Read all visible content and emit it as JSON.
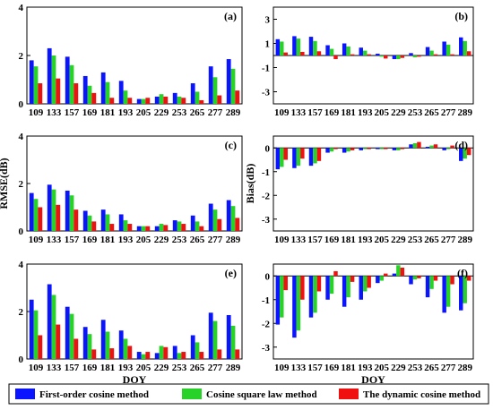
{
  "colors": {
    "first_order": "#0a14ff",
    "cosine_square": "#28d228",
    "dynamic": "#f01010"
  },
  "legend": {
    "items": [
      {
        "label": "First-order cosine method",
        "color": "#0a14ff"
      },
      {
        "label": "Cosine square law method",
        "color": "#28d228"
      },
      {
        "label": "The dynamic cosine method",
        "color": "#f01010"
      }
    ]
  },
  "chart_data": [
    {
      "type": "bar",
      "panel_label": "(a)",
      "categories": [
        "109",
        "133",
        "157",
        "169",
        "181",
        "193",
        "205",
        "229",
        "253",
        "265",
        "277",
        "289"
      ],
      "xlabel": "",
      "ylabel": "",
      "ylim": [
        0,
        4
      ],
      "yticks": [
        0,
        2,
        4
      ],
      "legend": "bottom",
      "series": [
        {
          "name": "First-order cosine method",
          "values": [
            1.8,
            2.3,
            1.95,
            1.15,
            1.3,
            0.95,
            0.2,
            0.3,
            0.45,
            0.85,
            1.55,
            1.85
          ]
        },
        {
          "name": "Cosine square law method",
          "values": [
            1.55,
            2.0,
            1.6,
            0.75,
            0.9,
            0.55,
            0.2,
            0.4,
            0.3,
            0.5,
            1.1,
            1.45
          ]
        },
        {
          "name": "The dynamic cosine method",
          "values": [
            0.85,
            1.05,
            0.85,
            0.45,
            0.25,
            0.25,
            0.25,
            0.3,
            0.25,
            0.15,
            0.35,
            0.55
          ]
        }
      ]
    },
    {
      "type": "bar",
      "panel_label": "(b)",
      "categories": [
        "109",
        "133",
        "157",
        "169",
        "181",
        "193",
        "205",
        "229",
        "253",
        "265",
        "277",
        "289"
      ],
      "xlabel": "",
      "ylabel": "",
      "ylim": [
        -4,
        4
      ],
      "yticks": [
        -3,
        -1,
        1,
        3
      ],
      "legend": "bottom",
      "series": [
        {
          "name": "First-order cosine method",
          "values": [
            1.35,
            1.6,
            1.55,
            0.85,
            1.0,
            0.65,
            0.15,
            -0.3,
            0.2,
            0.7,
            1.15,
            1.5
          ]
        },
        {
          "name": "Cosine square law method",
          "values": [
            1.15,
            1.4,
            1.2,
            0.55,
            0.75,
            0.4,
            -0.1,
            -0.3,
            -0.15,
            0.4,
            0.9,
            1.2
          ]
        },
        {
          "name": "The dynamic cosine method",
          "values": [
            0.25,
            0.3,
            0.35,
            -0.3,
            0.1,
            0.1,
            -0.25,
            -0.2,
            -0.1,
            0.1,
            0.1,
            0.35
          ]
        }
      ]
    },
    {
      "type": "bar",
      "panel_label": "(c)",
      "categories": [
        "109",
        "133",
        "157",
        "169",
        "181",
        "193",
        "205",
        "229",
        "253",
        "265",
        "277",
        "289"
      ],
      "xlabel": "",
      "ylabel": "RMSE(dB)",
      "ylim": [
        0,
        4
      ],
      "yticks": [
        0,
        2,
        4
      ],
      "legend": "bottom",
      "series": [
        {
          "name": "First-order cosine method",
          "values": [
            1.6,
            1.95,
            1.7,
            0.85,
            0.9,
            0.7,
            0.2,
            0.2,
            0.45,
            0.65,
            1.15,
            1.3
          ]
        },
        {
          "name": "Cosine square law method",
          "values": [
            1.35,
            1.75,
            1.5,
            0.65,
            0.7,
            0.45,
            0.2,
            0.3,
            0.4,
            0.4,
            0.9,
            1.05
          ]
        },
        {
          "name": "The dynamic cosine method",
          "values": [
            1.0,
            1.1,
            0.9,
            0.4,
            0.3,
            0.3,
            0.2,
            0.25,
            0.3,
            0.2,
            0.5,
            0.55
          ]
        }
      ]
    },
    {
      "type": "bar",
      "panel_label": "(d)",
      "categories": [
        "109",
        "133",
        "157",
        "169",
        "181",
        "193",
        "205",
        "229",
        "253",
        "265",
        "277",
        "289"
      ],
      "xlabel": "",
      "ylabel": "Bias(dB)",
      "ylim": [
        -3.5,
        0.5
      ],
      "yticks": [
        -3,
        -2,
        -1,
        0
      ],
      "legend": "bottom",
      "series": [
        {
          "name": "First-order cosine method",
          "values": [
            -0.9,
            -0.85,
            -0.75,
            -0.2,
            -0.2,
            -0.1,
            -0.05,
            -0.1,
            0.15,
            0.05,
            -0.1,
            -0.55
          ]
        },
        {
          "name": "Cosine square law method",
          "values": [
            -0.8,
            -0.75,
            -0.65,
            -0.15,
            -0.15,
            -0.05,
            -0.05,
            -0.1,
            0.2,
            0.1,
            -0.05,
            -0.45
          ]
        },
        {
          "name": "The dynamic cosine method",
          "values": [
            -0.5,
            -0.45,
            -0.55,
            -0.05,
            -0.1,
            -0.05,
            -0.05,
            -0.05,
            0.25,
            0.15,
            0.1,
            -0.3
          ]
        }
      ]
    },
    {
      "type": "bar",
      "panel_label": "(e)",
      "categories": [
        "109",
        "133",
        "157",
        "169",
        "181",
        "193",
        "205",
        "229",
        "253",
        "265",
        "277",
        "289"
      ],
      "xlabel": "DOY",
      "ylabel": "",
      "ylim": [
        0,
        4
      ],
      "yticks": [
        0,
        2,
        4
      ],
      "legend": "bottom",
      "series": [
        {
          "name": "First-order cosine method",
          "values": [
            2.5,
            3.15,
            2.2,
            1.35,
            1.65,
            1.2,
            0.3,
            0.25,
            0.55,
            1.0,
            1.95,
            1.85
          ]
        },
        {
          "name": "Cosine square law method",
          "values": [
            2.05,
            2.7,
            1.9,
            1.05,
            1.15,
            0.85,
            0.2,
            0.55,
            0.25,
            0.7,
            1.6,
            1.4
          ]
        },
        {
          "name": "The dynamic cosine method",
          "values": [
            1.0,
            1.45,
            0.85,
            0.4,
            0.45,
            0.55,
            0.3,
            0.5,
            0.3,
            0.3,
            0.4,
            0.4
          ]
        }
      ]
    },
    {
      "type": "bar",
      "panel_label": "(f)",
      "categories": [
        "109",
        "133",
        "157",
        "169",
        "181",
        "193",
        "205",
        "229",
        "253",
        "265",
        "277",
        "289"
      ],
      "xlabel": "DOY",
      "ylabel": "",
      "ylim": [
        -3.5,
        0.5
      ],
      "yticks": [
        -3,
        -2,
        -1,
        0
      ],
      "legend": "bottom",
      "series": [
        {
          "name": "First-order cosine method",
          "values": [
            -2.05,
            -2.6,
            -1.75,
            -1.0,
            -1.3,
            -1.0,
            -0.3,
            0.1,
            -0.35,
            -0.9,
            -1.55,
            -1.45
          ]
        },
        {
          "name": "Cosine square law method",
          "values": [
            -1.75,
            -2.3,
            -1.55,
            -0.75,
            -0.9,
            -0.65,
            -0.2,
            0.45,
            -0.15,
            -0.55,
            -1.3,
            -1.15
          ]
        },
        {
          "name": "The dynamic cosine method",
          "values": [
            -0.6,
            -1.0,
            -0.65,
            0.2,
            -0.25,
            -0.5,
            0.1,
            0.35,
            -0.1,
            -0.2,
            -0.35,
            -0.2
          ]
        }
      ]
    }
  ]
}
